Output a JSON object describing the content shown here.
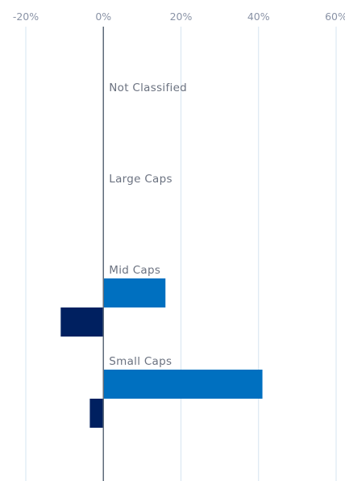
{
  "chart_data": {
    "type": "bar",
    "orientation": "horizontal",
    "x_ticks": [
      "-20%",
      "0%",
      "20%",
      "40%",
      "60%"
    ],
    "x_tick_values": [
      -20,
      0,
      20,
      40,
      60
    ],
    "xlim": [
      -20,
      60
    ],
    "grid": true,
    "categories": [
      "Not Classified",
      "Large Caps",
      "Mid Caps",
      "Small Caps"
    ],
    "series": [
      {
        "color": "#0070c0",
        "values": [
          null,
          null,
          16.0,
          41.0
        ]
      },
      {
        "color": "#002060",
        "values": [
          null,
          null,
          -11.0,
          -3.5
        ]
      }
    ]
  }
}
